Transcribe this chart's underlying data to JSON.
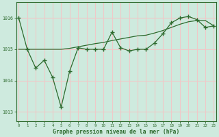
{
  "line1_x": [
    0,
    1,
    2,
    3,
    4,
    5,
    6,
    7,
    8,
    9,
    10,
    11,
    12,
    13,
    14,
    15,
    16,
    17,
    18,
    19,
    20,
    21,
    22,
    23
  ],
  "line1_y": [
    1016.0,
    1015.0,
    1014.4,
    1014.65,
    1014.1,
    1013.15,
    1014.3,
    1015.05,
    1015.0,
    1015.0,
    1015.0,
    1015.55,
    1015.05,
    1014.95,
    1015.0,
    1015.0,
    1015.2,
    1015.5,
    1015.85,
    1016.0,
    1016.05,
    1015.95,
    1015.7,
    1015.75
  ],
  "line2_x": [
    0,
    1,
    5,
    6,
    7,
    8,
    9,
    10,
    11,
    12,
    13,
    14,
    15,
    16,
    17,
    18,
    19,
    20,
    21,
    22,
    23
  ],
  "line2_y": [
    1015.0,
    1015.0,
    1015.0,
    1015.03,
    1015.08,
    1015.13,
    1015.18,
    1015.22,
    1015.28,
    1015.33,
    1015.38,
    1015.43,
    1015.45,
    1015.52,
    1015.6,
    1015.7,
    1015.8,
    1015.88,
    1015.92,
    1015.92,
    1015.75
  ],
  "line_color": "#2d6a2d",
  "bg_color": "#ceeade",
  "grid_color": "#f0c8c8",
  "xlabel": "Graphe pression niveau de la mer (hPa)",
  "ylim": [
    1012.7,
    1016.5
  ],
  "yticks": [
    1013,
    1014,
    1015,
    1016
  ],
  "xticks": [
    0,
    1,
    2,
    3,
    4,
    5,
    6,
    7,
    8,
    9,
    10,
    11,
    12,
    13,
    14,
    15,
    16,
    17,
    18,
    19,
    20,
    21,
    22,
    23
  ]
}
